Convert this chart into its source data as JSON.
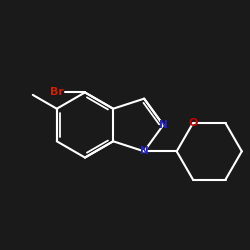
{
  "background_color": "#1a1a1a",
  "bond_color": "#ffffff",
  "atom_colors": {
    "Br": "#cc2200",
    "N": "#2222cc",
    "O": "#cc0000",
    "C": "#ffffff"
  },
  "bond_width": 1.5,
  "background_hex": "#1a1a1a"
}
